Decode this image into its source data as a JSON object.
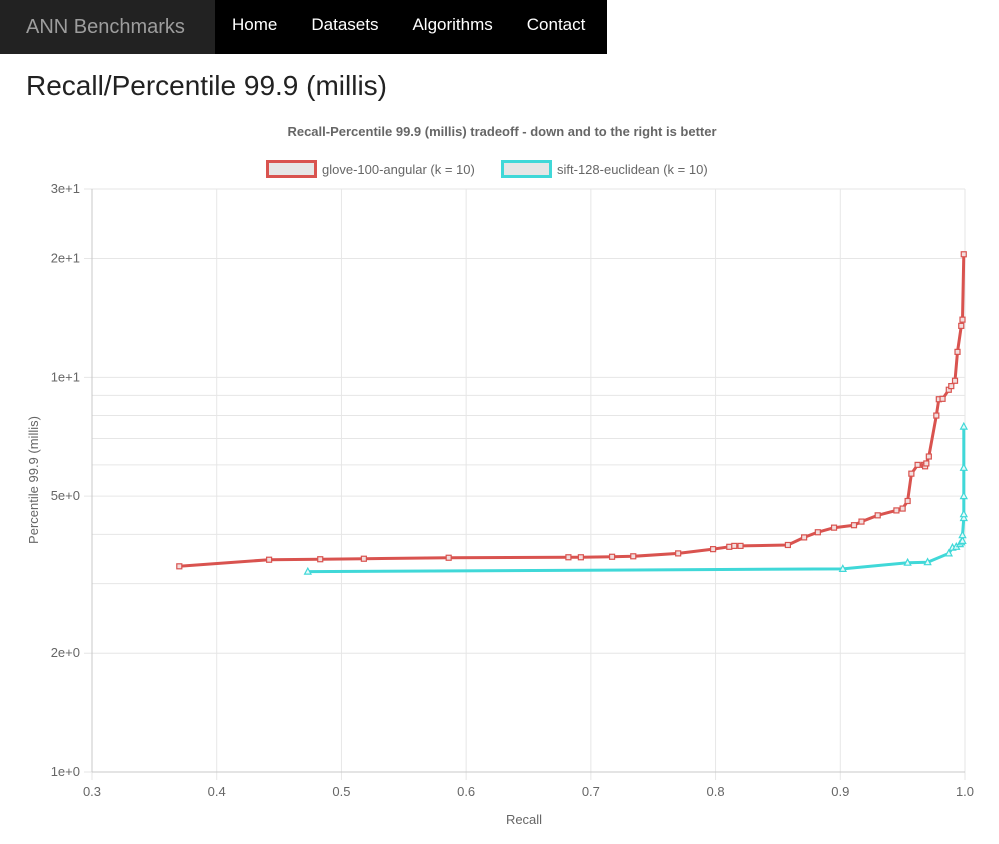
{
  "nav": {
    "brand": "ANN Benchmarks",
    "items": [
      {
        "label": "Home"
      },
      {
        "label": "Datasets"
      },
      {
        "label": "Algorithms"
      },
      {
        "label": "Contact"
      }
    ],
    "background": "#000000"
  },
  "page": {
    "title": "Recall/Percentile 99.9 (millis)"
  },
  "chart_data": {
    "type": "line",
    "title": "Recall-Percentile 99.9 (millis) tradeoff - down and to the right is better",
    "xlabel": "Recall",
    "ylabel": "Percentile 99.9 (millis)",
    "xlim": [
      0.3,
      1.0
    ],
    "ylim": [
      1,
      30
    ],
    "yscale": "log",
    "grid": true,
    "legend_position": "top",
    "x_ticks": [
      "0.3",
      "0.4",
      "0.5",
      "0.6",
      "0.7",
      "0.8",
      "0.9",
      "1.0"
    ],
    "y_ticks": [
      {
        "value": 30,
        "label": "3e+1"
      },
      {
        "value": 20,
        "label": "2e+1"
      },
      {
        "value": 10,
        "label": "1e+1"
      },
      {
        "value": 5,
        "label": "5e+0"
      },
      {
        "value": 2,
        "label": "2e+0"
      },
      {
        "value": 1,
        "label": "1e+0"
      }
    ],
    "y_minor_grid": [
      3,
      4,
      6,
      7,
      8,
      9
    ],
    "series": [
      {
        "name": "glove-100-angular (k = 10)",
        "color": "#d9534f",
        "marker": "square",
        "x": [
          0.37,
          0.442,
          0.483,
          0.518,
          0.586,
          0.682,
          0.692,
          0.717,
          0.734,
          0.77,
          0.798,
          0.811,
          0.815,
          0.82,
          0.858,
          0.871,
          0.882,
          0.895,
          0.911,
          0.917,
          0.93,
          0.945,
          0.95,
          0.954,
          0.957,
          0.962,
          0.967,
          0.968,
          0.969,
          0.971,
          0.977,
          0.979,
          0.982,
          0.987,
          0.989,
          0.992,
          0.994,
          0.997,
          0.998,
          0.999
        ],
        "y": [
          3.32,
          3.45,
          3.46,
          3.47,
          3.49,
          3.5,
          3.5,
          3.51,
          3.52,
          3.58,
          3.67,
          3.72,
          3.74,
          3.74,
          3.76,
          3.93,
          4.05,
          4.16,
          4.22,
          4.31,
          4.47,
          4.6,
          4.65,
          4.86,
          5.7,
          6.0,
          6.0,
          5.95,
          6.05,
          6.3,
          8.0,
          8.8,
          8.82,
          9.3,
          9.5,
          9.8,
          11.6,
          13.5,
          14.0,
          20.5
        ]
      },
      {
        "name": "sift-128-euclidean (k = 10)",
        "color": "#40d8d8",
        "marker": "triangle",
        "x": [
          0.473,
          0.902,
          0.954,
          0.97,
          0.987,
          0.99,
          0.993,
          0.996,
          0.997,
          0.998,
          0.998,
          0.999,
          0.999,
          0.999,
          0.999,
          0.999
        ],
        "y": [
          3.22,
          3.27,
          3.39,
          3.4,
          3.58,
          3.7,
          3.72,
          3.78,
          3.82,
          3.85,
          3.98,
          4.4,
          4.5,
          5.0,
          5.9,
          7.5
        ]
      }
    ]
  }
}
